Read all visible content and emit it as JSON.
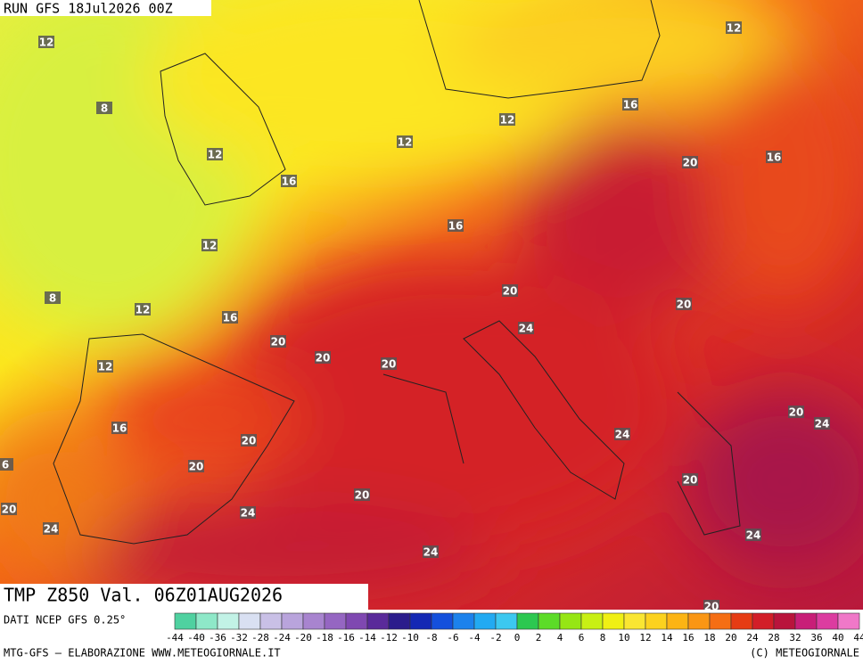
{
  "header": {
    "run": "RUN GFS 18Jul2026 00Z",
    "field": "TMP Z850 Val. 06Z01AUG2026"
  },
  "map": {
    "contour_labels": [
      12,
      8,
      12,
      12,
      12,
      16,
      12,
      20,
      16,
      16,
      16,
      12,
      8,
      12,
      16,
      20,
      20,
      20,
      20,
      24,
      20,
      12,
      16,
      20,
      20,
      20,
      24,
      20,
      24,
      24,
      24,
      20,
      24,
      20,
      24,
      20,
      6
    ]
  },
  "footer": {
    "source": "DATI NCEP GFS 0.25°",
    "credits": "MTG-GFS — ELABORAZIONE WWW.METEOGIORNALE.IT",
    "copyright": "(C) METEOGIORNALE"
  },
  "colorbar": {
    "ticks": [
      -44,
      -40,
      -36,
      -32,
      -28,
      -24,
      -20,
      -18,
      -16,
      -14,
      -12,
      -10,
      -8,
      -6,
      -4,
      -2,
      0,
      2,
      4,
      6,
      8,
      10,
      12,
      14,
      16,
      18,
      20,
      24,
      28,
      32,
      36,
      40,
      44
    ],
    "colors": [
      "#4fd1a0",
      "#8ee8c8",
      "#c2f2e6",
      "#d9e0f2",
      "#c9c0e6",
      "#b9a4dc",
      "#a884cf",
      "#9566c2",
      "#7f48b1",
      "#5a2a9a",
      "#2b1c8c",
      "#1428b4",
      "#1450dc",
      "#1c82ec",
      "#22aaf2",
      "#3cc8f0",
      "#2cc850",
      "#5cdc28",
      "#96e614",
      "#c8f014",
      "#f0f014",
      "#fae632",
      "#fcd21e",
      "#fcb414",
      "#fa9614",
      "#f56e14",
      "#e63c14",
      "#d21e28",
      "#b9143c",
      "#c81e78",
      "#dc3ca0",
      "#f078c8"
    ]
  }
}
